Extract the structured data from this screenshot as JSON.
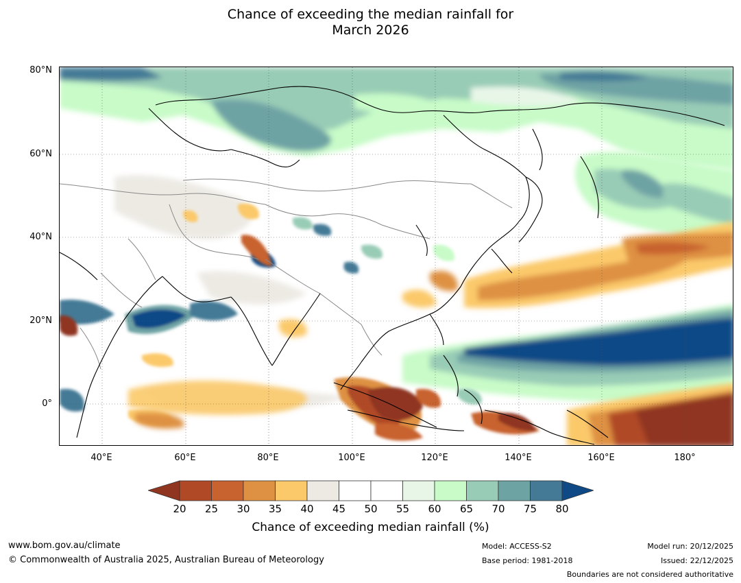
{
  "title_line1": "Chance of exceeding the median rainfall for",
  "title_line2": "March 2026",
  "lat_labels": [
    "80°N",
    "60°N",
    "40°N",
    "20°N",
    "0°"
  ],
  "lon_labels": [
    "40°E",
    "60°E",
    "80°E",
    "100°E",
    "120°E",
    "140°E",
    "160°E",
    "180°"
  ],
  "colorbar": {
    "ticks": [
      "20",
      "25",
      "30",
      "35",
      "40",
      "45",
      "50",
      "55",
      "60",
      "65",
      "70",
      "75",
      "80"
    ],
    "colors": [
      "#8f3520",
      "#b04a26",
      "#c8622f",
      "#de9143",
      "#fbc96a",
      "#edeae4",
      "#ffffff",
      "#ffffff",
      "#e8f6e8",
      "#c8fbc8",
      "#99ccb6",
      "#6ea3a4",
      "#457a96",
      "#0f4a86"
    ],
    "label": "Chance of exceeding median rainfall (%)"
  },
  "map": {
    "land_outline_color": "#000000",
    "border_color": "#888888"
  },
  "footer": {
    "url": "www.bom.gov.au/climate",
    "copyright": "© Commonwealth of Australia 2025, Australian Bureau of Meteorology",
    "model": "Model: ACCESS-S2",
    "base_period": "Base period: 1981-2018",
    "model_run": "Model run: 20/12/2025",
    "issued": "Issued: 22/12/2025",
    "disclaimer": "Boundaries are not considered authoritative"
  }
}
